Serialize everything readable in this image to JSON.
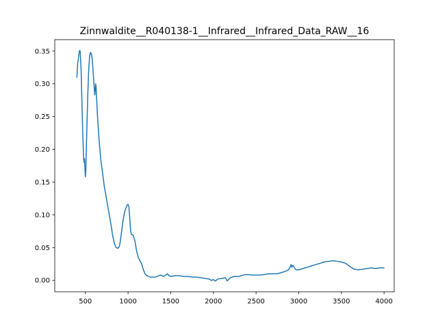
{
  "chart_data": {
    "type": "line",
    "title": "Zinnwaldite__R040138-1__Infrared__Infrared_Data_RAW__16",
    "xlabel": "",
    "ylabel": "",
    "xlim": [
      141,
      4119
    ],
    "ylim": [
      -0.0175,
      0.3675
    ],
    "xticks": [
      500,
      1000,
      1500,
      2000,
      2500,
      3000,
      3500,
      4000
    ],
    "yticks": [
      0.0,
      0.05,
      0.1,
      0.15,
      0.2,
      0.25,
      0.3,
      0.35
    ],
    "ytick_labels": [
      "0.00",
      "0.05",
      "0.10",
      "0.15",
      "0.20",
      "0.25",
      "0.30",
      "0.35"
    ],
    "grid": false,
    "legend": "none",
    "color": "#1f77b4",
    "series": [
      {
        "x": [
          400,
          405,
          410,
          415,
          420,
          425,
          430,
          435,
          440,
          450,
          460,
          470,
          480,
          485,
          490,
          495,
          500,
          505,
          510,
          520,
          530,
          540,
          550,
          560,
          570,
          580,
          590,
          600,
          610,
          615,
          620,
          625,
          630,
          635,
          640,
          650,
          660,
          670,
          680,
          700,
          720,
          740,
          760,
          780,
          800,
          820,
          840,
          860,
          880,
          890,
          900,
          910,
          920,
          940,
          960,
          980,
          990,
          1000,
          1010,
          1020,
          1030,
          1040,
          1060,
          1080,
          1100,
          1120,
          1140,
          1160,
          1180,
          1200,
          1220,
          1240,
          1260,
          1280,
          1300,
          1320,
          1340,
          1360,
          1380,
          1400,
          1420,
          1440,
          1460,
          1480,
          1500,
          1550,
          1600,
          1650,
          1700,
          1750,
          1800,
          1850,
          1900,
          1950,
          1975,
          2000,
          2025,
          2050,
          2100,
          2140,
          2150,
          2160,
          2200,
          2250,
          2300,
          2350,
          2400,
          2450,
          2500,
          2550,
          2600,
          2650,
          2700,
          2750,
          2800,
          2850,
          2880,
          2900,
          2910,
          2920,
          2930,
          2940,
          2950,
          2960,
          2970,
          3000,
          3050,
          3100,
          3150,
          3200,
          3250,
          3300,
          3350,
          3400,
          3450,
          3500,
          3550,
          3600,
          3650,
          3700,
          3750,
          3800,
          3850,
          3900,
          3950,
          4000
        ],
        "y": [
          0.31,
          0.32,
          0.332,
          0.336,
          0.34,
          0.346,
          0.35,
          0.351,
          0.349,
          0.32,
          0.27,
          0.22,
          0.185,
          0.18,
          0.186,
          0.17,
          0.158,
          0.168,
          0.195,
          0.245,
          0.29,
          0.325,
          0.342,
          0.348,
          0.346,
          0.338,
          0.32,
          0.3,
          0.283,
          0.29,
          0.3,
          0.295,
          0.28,
          0.27,
          0.255,
          0.235,
          0.215,
          0.2,
          0.185,
          0.165,
          0.145,
          0.13,
          0.115,
          0.1,
          0.085,
          0.068,
          0.056,
          0.05,
          0.049,
          0.05,
          0.053,
          0.06,
          0.07,
          0.09,
          0.105,
          0.112,
          0.115,
          0.116,
          0.112,
          0.095,
          0.075,
          0.07,
          0.069,
          0.06,
          0.045,
          0.035,
          0.03,
          0.025,
          0.016,
          0.01,
          0.007,
          0.006,
          0.005,
          0.005,
          0.005,
          0.005,
          0.006,
          0.007,
          0.008,
          0.007,
          0.006,
          0.008,
          0.01,
          0.007,
          0.006,
          0.007,
          0.007,
          0.006,
          0.006,
          0.005,
          0.005,
          0.004,
          0.003,
          0.002,
          0.0,
          0.001,
          -0.001,
          0.002,
          0.003,
          0.004,
          0.002,
          -0.001,
          0.004,
          0.006,
          0.006,
          0.008,
          0.009,
          0.008,
          0.008,
          0.008,
          0.009,
          0.01,
          0.01,
          0.01,
          0.012,
          0.014,
          0.016,
          0.02,
          0.024,
          0.02,
          0.023,
          0.021,
          0.019,
          0.017,
          0.016,
          0.016,
          0.018,
          0.02,
          0.022,
          0.024,
          0.026,
          0.028,
          0.029,
          0.03,
          0.029,
          0.028,
          0.026,
          0.021,
          0.017,
          0.016,
          0.017,
          0.018,
          0.019,
          0.018,
          0.019,
          0.019
        ]
      }
    ]
  }
}
